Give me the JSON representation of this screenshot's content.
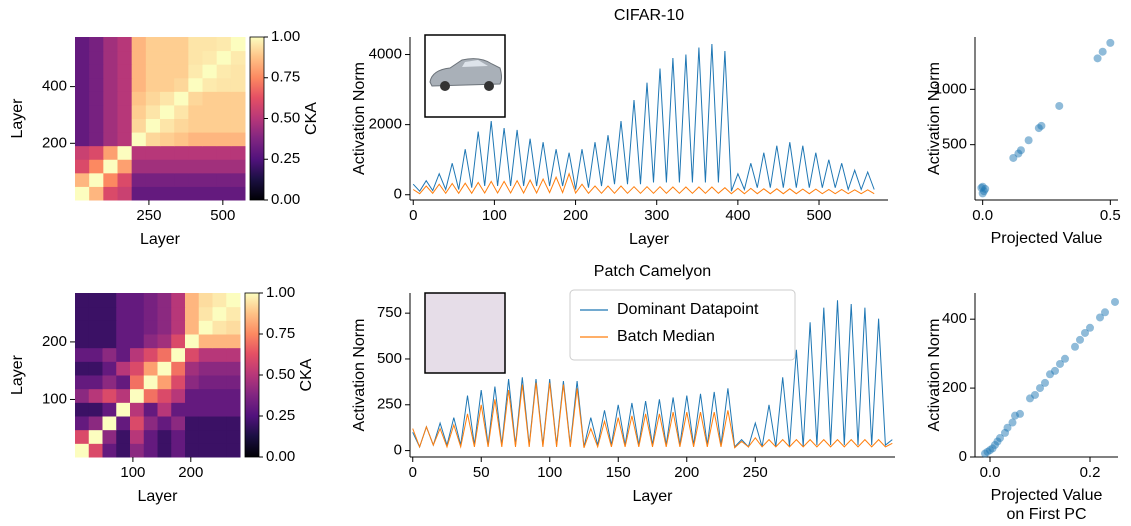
{
  "chart_data": [
    {
      "type": "heatmap",
      "xlabel": "Layer",
      "ylabel": "Layer",
      "xlim": [
        0,
        575
      ],
      "ylim": [
        0,
        575
      ],
      "xticks": [
        250,
        500
      ],
      "yticks": [
        200,
        400
      ],
      "colorbar": {
        "label": "CKA",
        "lim": [
          0,
          1
        ],
        "ticks": [
          {
            "value": 0,
            "label": "0.00"
          },
          0.25,
          {
            "value": 0.5,
            "label": "0.50"
          },
          0.75,
          {
            "value": 1,
            "label": "1.00"
          }
        ]
      },
      "matrix": [
        [
          1,
          0.85,
          0.6,
          0.55,
          0.3,
          0.3,
          0.3,
          0.3,
          0.3,
          0.3,
          0.3,
          0.3
        ],
        [
          0.85,
          1,
          0.75,
          0.6,
          0.35,
          0.35,
          0.35,
          0.35,
          0.35,
          0.35,
          0.35,
          0.35
        ],
        [
          0.6,
          0.75,
          1,
          0.8,
          0.45,
          0.45,
          0.45,
          0.45,
          0.45,
          0.45,
          0.45,
          0.45
        ],
        [
          0.55,
          0.6,
          0.8,
          1,
          0.5,
          0.5,
          0.5,
          0.5,
          0.5,
          0.5,
          0.5,
          0.5
        ],
        [
          0.3,
          0.35,
          0.45,
          0.5,
          1,
          0.92,
          0.9,
          0.88,
          0.85,
          0.85,
          0.85,
          0.85
        ],
        [
          0.3,
          0.35,
          0.45,
          0.5,
          0.92,
          1,
          0.95,
          0.92,
          0.9,
          0.9,
          0.9,
          0.9
        ],
        [
          0.3,
          0.35,
          0.45,
          0.5,
          0.9,
          0.95,
          1,
          0.95,
          0.9,
          0.9,
          0.9,
          0.9
        ],
        [
          0.3,
          0.35,
          0.45,
          0.5,
          0.88,
          0.92,
          0.95,
          1,
          0.92,
          0.9,
          0.9,
          0.9
        ],
        [
          0.3,
          0.35,
          0.45,
          0.5,
          0.85,
          0.9,
          0.9,
          0.92,
          1,
          0.96,
          0.95,
          0.95
        ],
        [
          0.3,
          0.35,
          0.45,
          0.5,
          0.85,
          0.9,
          0.9,
          0.9,
          0.96,
          1,
          0.96,
          0.95
        ],
        [
          0.3,
          0.35,
          0.45,
          0.5,
          0.85,
          0.9,
          0.9,
          0.9,
          0.95,
          0.96,
          1,
          0.96
        ],
        [
          0.3,
          0.35,
          0.45,
          0.5,
          0.85,
          0.9,
          0.9,
          0.9,
          0.95,
          0.95,
          0.96,
          1
        ]
      ]
    },
    {
      "type": "line",
      "title": "CIFAR-10",
      "xlabel": "Layer",
      "ylabel": "Activation Norm",
      "xlim": [
        -4,
        585
      ],
      "ylim": [
        -150,
        4500
      ],
      "xticks": [
        0,
        100,
        200,
        300,
        400,
        500
      ],
      "yticks": [
        0,
        2000,
        4000
      ],
      "x": [
        0,
        8,
        16,
        24,
        32,
        40,
        48,
        56,
        64,
        72,
        80,
        88,
        96,
        104,
        112,
        120,
        128,
        136,
        144,
        152,
        160,
        168,
        176,
        184,
        192,
        200,
        208,
        216,
        224,
        232,
        240,
        248,
        256,
        264,
        272,
        280,
        288,
        296,
        304,
        312,
        320,
        328,
        336,
        344,
        352,
        360,
        368,
        376,
        384,
        392,
        400,
        408,
        416,
        424,
        432,
        440,
        448,
        456,
        464,
        472,
        480,
        488,
        496,
        504,
        512,
        520,
        528,
        536,
        544,
        552,
        560,
        568
      ],
      "series": [
        {
          "color": "#1f77b4",
          "values": [
            300,
            100,
            400,
            120,
            600,
            150,
            900,
            150,
            1300,
            200,
            1800,
            250,
            2100,
            250,
            1900,
            250,
            1850,
            250,
            1600,
            250,
            1500,
            250,
            1300,
            250,
            1200,
            150,
            1300,
            200,
            1500,
            250,
            1700,
            300,
            2100,
            300,
            2700,
            300,
            3200,
            350,
            3600,
            350,
            3900,
            350,
            4000,
            350,
            4200,
            350,
            4300,
            350,
            4100,
            100,
            600,
            150,
            900,
            200,
            1200,
            200,
            1400,
            200,
            1500,
            200,
            1400,
            200,
            1200,
            200,
            1000,
            200,
            900,
            150,
            700,
            150,
            650,
            150
          ]
        },
        {
          "color": "#ff7f0e",
          "values": [
            150,
            30,
            250,
            40,
            300,
            40,
            320,
            40,
            330,
            40,
            350,
            50,
            380,
            50,
            380,
            50,
            400,
            50,
            420,
            50,
            450,
            60,
            500,
            60,
            600,
            50,
            300,
            40,
            250,
            40,
            250,
            40,
            250,
            40,
            230,
            40,
            230,
            40,
            230,
            40,
            220,
            40,
            220,
            40,
            220,
            40,
            220,
            40,
            200,
            30,
            180,
            30,
            180,
            30,
            170,
            30,
            170,
            30,
            170,
            30,
            160,
            30,
            160,
            30,
            150,
            30,
            150,
            30,
            140,
            30,
            140,
            30
          ]
        }
      ]
    },
    {
      "type": "scatter",
      "xlabel": [
        "Projected Value"
      ],
      "ylabel": "Activation Norm",
      "xlim": [
        -0.03,
        0.53
      ],
      "ylim": [
        0,
        1473
      ],
      "xticks": [
        {
          "value": 0,
          "label": "0.0"
        },
        0.5
      ],
      "yticks": [
        500,
        1000
      ],
      "series": [
        {
          "color": "#1f77b4",
          "x": [
            0,
            0.005,
            0.01,
            0,
            -0.005,
            0.12,
            0.14,
            0.15,
            0.18,
            0.22,
            0.23,
            0.3,
            0.45,
            0.47,
            0.5
          ],
          "values": [
            120,
            80,
            100,
            60,
            110,
            380,
            420,
            450,
            540,
            650,
            670,
            850,
            1280,
            1340,
            1420
          ]
        }
      ]
    },
    {
      "type": "heatmap",
      "xlabel": "Layer",
      "ylabel": "Layer",
      "xlim": [
        0,
        285
      ],
      "ylim": [
        0,
        285
      ],
      "xticks": [
        100,
        200
      ],
      "yticks": [
        100,
        200
      ],
      "colorbar": {
        "label": "CKA",
        "lim": [
          0,
          1
        ],
        "ticks": [
          {
            "value": 0,
            "label": "0.00"
          },
          0.25,
          {
            "value": 0.5,
            "label": "0.50"
          },
          0.75,
          {
            "value": 1,
            "label": "1.00"
          }
        ]
      },
      "matrix": [
        [
          1,
          0.6,
          0.3,
          0.2,
          0.4,
          0.3,
          0.2,
          0.3,
          0.2,
          0.2,
          0.2,
          0.2
        ],
        [
          0.6,
          1,
          0.4,
          0.2,
          0.5,
          0.3,
          0.2,
          0.3,
          0.2,
          0.2,
          0.2,
          0.2
        ],
        [
          0.3,
          0.4,
          1,
          0.3,
          0.6,
          0.4,
          0.3,
          0.4,
          0.2,
          0.2,
          0.2,
          0.2
        ],
        [
          0.2,
          0.2,
          0.3,
          1,
          0.5,
          0.3,
          0.5,
          0.3,
          0.3,
          0.3,
          0.3,
          0.3
        ],
        [
          0.4,
          0.5,
          0.6,
          0.5,
          1,
          0.7,
          0.6,
          0.5,
          0.3,
          0.3,
          0.3,
          0.3
        ],
        [
          0.3,
          0.3,
          0.4,
          0.3,
          0.7,
          1,
          0.8,
          0.6,
          0.4,
          0.35,
          0.35,
          0.35
        ],
        [
          0.2,
          0.2,
          0.3,
          0.5,
          0.6,
          0.8,
          1,
          0.7,
          0.45,
          0.4,
          0.4,
          0.4
        ],
        [
          0.3,
          0.3,
          0.4,
          0.3,
          0.5,
          0.6,
          0.7,
          1,
          0.6,
          0.5,
          0.5,
          0.5
        ],
        [
          0.2,
          0.2,
          0.2,
          0.3,
          0.3,
          0.4,
          0.45,
          0.6,
          1,
          0.85,
          0.85,
          0.85
        ],
        [
          0.2,
          0.2,
          0.2,
          0.3,
          0.3,
          0.35,
          0.4,
          0.5,
          0.85,
          1,
          0.95,
          0.93
        ],
        [
          0.2,
          0.2,
          0.2,
          0.3,
          0.3,
          0.35,
          0.4,
          0.5,
          0.85,
          0.95,
          1,
          0.96
        ],
        [
          0.2,
          0.2,
          0.2,
          0.3,
          0.3,
          0.35,
          0.4,
          0.5,
          0.85,
          0.93,
          0.96,
          1
        ]
      ]
    },
    {
      "type": "line",
      "title": "Patch Camelyon",
      "xlabel": "Layer",
      "ylabel": "Activation Norm",
      "xlim": [
        -2,
        352
      ],
      "ylim": [
        -35,
        860
      ],
      "xticks": [
        0,
        50,
        100,
        150,
        200,
        250
      ],
      "yticks": [
        0,
        250,
        500,
        750
      ],
      "legend": "upper center",
      "x": [
        0,
        5,
        10,
        15,
        20,
        25,
        30,
        35,
        40,
        45,
        50,
        55,
        60,
        65,
        70,
        75,
        80,
        85,
        90,
        95,
        100,
        105,
        110,
        115,
        120,
        125,
        130,
        135,
        140,
        145,
        150,
        155,
        160,
        165,
        170,
        175,
        180,
        185,
        190,
        195,
        200,
        205,
        210,
        215,
        220,
        225,
        230,
        235,
        240,
        245,
        250,
        255,
        260,
        265,
        270,
        275,
        280,
        285,
        290,
        295,
        300,
        305,
        310,
        315,
        320,
        325,
        330,
        335,
        340,
        345,
        350
      ],
      "series": [
        {
          "name": "Dominant Datapoint",
          "color": "#1f77b4",
          "values": [
            100,
            20,
            130,
            30,
            150,
            30,
            180,
            30,
            300,
            30,
            330,
            30,
            350,
            30,
            390,
            30,
            400,
            30,
            390,
            30,
            390,
            30,
            380,
            30,
            380,
            20,
            180,
            30,
            220,
            30,
            250,
            30,
            260,
            30,
            270,
            30,
            280,
            30,
            290,
            30,
            300,
            30,
            310,
            30,
            320,
            30,
            340,
            20,
            60,
            20,
            150,
            20,
            250,
            20,
            400,
            20,
            550,
            20,
            700,
            30,
            780,
            30,
            820,
            30,
            800,
            30,
            780,
            30,
            720,
            30,
            60
          ]
        },
        {
          "name": "Batch Median",
          "color": "#ff7f0e",
          "values": [
            120,
            20,
            130,
            30,
            120,
            20,
            140,
            20,
            200,
            20,
            250,
            20,
            280,
            20,
            330,
            20,
            360,
            20,
            370,
            20,
            370,
            20,
            360,
            20,
            340,
            15,
            120,
            20,
            160,
            20,
            180,
            20,
            190,
            20,
            200,
            20,
            200,
            20,
            210,
            20,
            210,
            20,
            210,
            20,
            210,
            20,
            220,
            15,
            50,
            20,
            70,
            20,
            60,
            20,
            60,
            20,
            60,
            20,
            60,
            20,
            60,
            20,
            60,
            20,
            60,
            20,
            60,
            20,
            60,
            20,
            40
          ]
        }
      ]
    },
    {
      "type": "scatter",
      "xlabel": [
        "Projected Value",
        "on First PC"
      ],
      "ylabel": "Activation Norm",
      "xlim": [
        -0.03,
        0.256
      ],
      "ylim": [
        0,
        476
      ],
      "xticks": [
        {
          "value": 0,
          "label": "0.0"
        },
        0.2
      ],
      "yticks": [
        0,
        200,
        400
      ],
      "series": [
        {
          "color": "#1f77b4",
          "x": [
            -0.01,
            -0.005,
            0,
            0.005,
            0.01,
            0.015,
            0.02,
            0.03,
            0.035,
            0.045,
            0.05,
            0.06,
            0.08,
            0.09,
            0.1,
            0.11,
            0.12,
            0.13,
            0.14,
            0.15,
            0.17,
            0.18,
            0.19,
            0.2,
            0.22,
            0.23,
            0.25
          ],
          "values": [
            10,
            15,
            20,
            25,
            35,
            45,
            55,
            70,
            85,
            100,
            120,
            125,
            170,
            180,
            200,
            215,
            240,
            250,
            270,
            285,
            320,
            340,
            360,
            375,
            405,
            420,
            450
          ]
        }
      ]
    }
  ]
}
